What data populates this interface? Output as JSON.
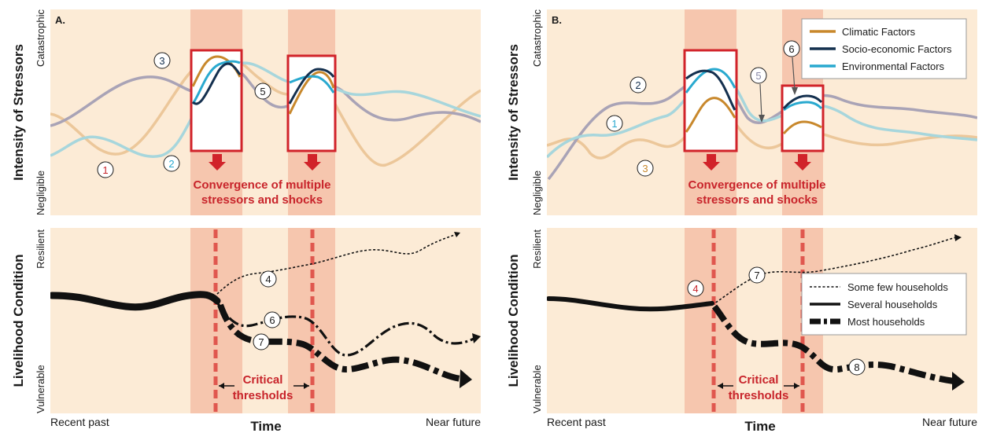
{
  "colors": {
    "panel_bg": "#fcebd6",
    "band": "#f6c6ae",
    "box": "#d1232a",
    "climatic": "#c8882c",
    "climatic_faded": "#ecc79a",
    "socio": "#14304f",
    "socio_faded": "#a9a3b6",
    "environmental": "#29a9cf",
    "environmental_faded": "#a7d6dc",
    "households": "#111111",
    "threshold": "#e0574e"
  },
  "panels": [
    {
      "label": "A.",
      "stressor_ylabel": "Intensity of Stressors",
      "stressor_ytick_top": "Catastrophic",
      "stressor_ytick_bottom": "Negligible",
      "convergence_line1": "Convergence of multiple",
      "convergence_line2": "stressors and shocks",
      "livelihood_ylabel": "Livelihood Condition",
      "livelihood_ytick_top": "Resilient",
      "livelihood_ytick_bottom": "Vulnerable",
      "critical_line1": "Critical",
      "critical_line2": "thresholds",
      "x_left": "Recent past",
      "x_right": "Near future",
      "x_title": "Time",
      "stressor_markers": [
        {
          "n": "1",
          "color": "#c8242b"
        },
        {
          "n": "2",
          "color": "#29a9cf"
        },
        {
          "n": "3",
          "color": "#14304f"
        },
        {
          "n": "5",
          "color": "#1a1a1a"
        }
      ],
      "livelihood_markers": [
        {
          "n": "4",
          "color": "#1a1a1a"
        },
        {
          "n": "6",
          "color": "#1a1a1a"
        },
        {
          "n": "7",
          "color": "#1a1a1a"
        }
      ]
    },
    {
      "label": "B.",
      "stressor_ylabel": "Intensity of Stressors",
      "stressor_ytick_top": "Catastrophic",
      "stressor_ytick_bottom": "Negligible",
      "convergence_line1": "Convergence of multiple",
      "convergence_line2": "stressors and shocks",
      "livelihood_ylabel": "Livelihood Condition",
      "livelihood_ytick_top": "Resilient",
      "livelihood_ytick_bottom": "Vulnerable",
      "critical_line1": "Critical",
      "critical_line2": "thresholds",
      "x_left": "Recent past",
      "x_right": "Near future",
      "x_title": "Time",
      "stressor_markers": [
        {
          "n": "1",
          "color": "#29a9cf"
        },
        {
          "n": "2",
          "color": "#14304f"
        },
        {
          "n": "3",
          "color": "#c8882c"
        },
        {
          "n": "5",
          "color": "#8a8aa8"
        },
        {
          "n": "6",
          "color": "#1a1a1a"
        }
      ],
      "livelihood_markers": [
        {
          "n": "4",
          "color": "#c8242b"
        },
        {
          "n": "7",
          "color": "#1a1a1a"
        },
        {
          "n": "8",
          "color": "#1a1a1a"
        }
      ]
    }
  ],
  "legend_factors": [
    "Climatic Factors",
    "Socio-economic Factors",
    "Environmental Factors"
  ],
  "legend_households": [
    "Some few households",
    "Several households",
    "Most households"
  ]
}
